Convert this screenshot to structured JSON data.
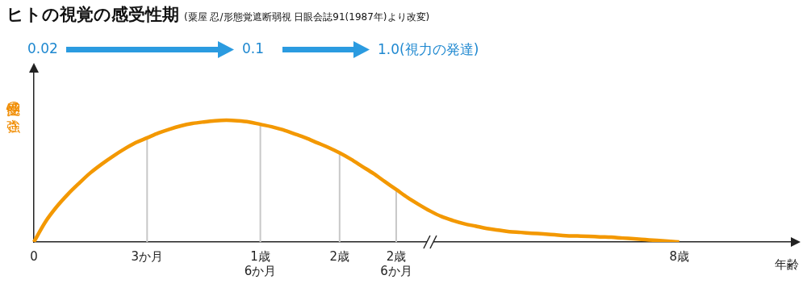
{
  "chart_data": {
    "type": "line",
    "title": "ヒトの視覚の感受性期",
    "subtitle": "(粟屋 忍/形態覚遮断弱視 日眼会誌91(1987年)より改変)",
    "annotations": [
      "0.02",
      "0.1",
      "1.0(視力の発達)"
    ],
    "y_label": "感受性の強さ",
    "x_label": "年齢",
    "categories": [
      "0",
      null,
      null,
      null,
      null,
      null,
      null,
      null,
      null,
      null,
      "3か月",
      null,
      null,
      null,
      null,
      null,
      null,
      null,
      null,
      null,
      "1歳\n6か月",
      null,
      null,
      null,
      null,
      null,
      null,
      "2歳",
      null,
      null,
      null,
      null,
      "2歳\n6か月",
      null,
      null,
      null,
      null,
      null,
      null,
      null,
      null,
      null,
      null,
      null,
      null,
      null,
      null,
      null,
      null,
      null,
      null,
      null,
      null,
      null,
      null,
      null,
      null,
      "8歳",
      null,
      null,
      null,
      null,
      null,
      null,
      null,
      null,
      null,
      null
    ],
    "values": [
      0,
      11.6,
      20.5,
      27.9,
      34.4,
      40.5,
      45.6,
      50.2,
      54.4,
      58.1,
      60.9,
      63.7,
      66.0,
      67.9,
      69.3,
      70.2,
      70.9,
      71.2,
      70.9,
      70.2,
      68.8,
      67.4,
      65.6,
      63.3,
      60.9,
      58.1,
      55.3,
      52.1,
      48.4,
      44.2,
      40.0,
      35.3,
      30.7,
      26.0,
      21.9,
      18.1,
      14.9,
      12.6,
      10.7,
      9.3,
      7.9,
      7.0,
      6.0,
      5.6,
      5.1,
      4.7,
      4.2,
      3.7,
      3.5,
      3.3,
      3.0,
      2.8,
      2.3,
      1.9,
      1.4,
      0.9,
      0.5,
      0,
      null,
      null,
      null,
      null,
      null,
      null,
      null,
      null,
      null,
      null
    ],
    "color": "#f39800",
    "ylim": [
      0,
      100
    ],
    "grid": false,
    "tick_labels": "x"
  }
}
